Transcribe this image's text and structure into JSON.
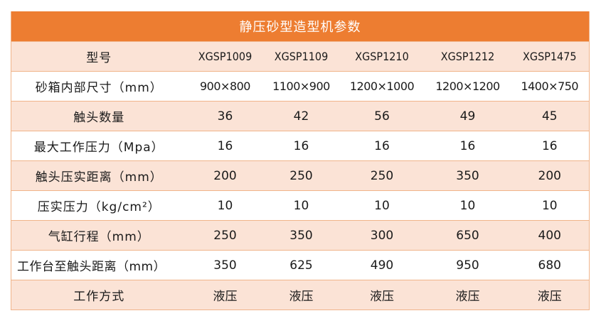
{
  "table": {
    "title": "静压砂型造型机参数",
    "colors": {
      "header_bg": "#ed7d31",
      "stripe_bg": "#fbe3d6",
      "border": "#f0b48a",
      "header_text": "#ffffff"
    },
    "rows": [
      {
        "label": "型号",
        "values": [
          "XGSP1009",
          "XGSP1109",
          "XGSP1210",
          "XGSP1212",
          "XGSP1475"
        ]
      },
      {
        "label": "砂箱内部尺寸（mm）",
        "values": [
          "900×800",
          "1100×900",
          "1200×1000",
          "1200×1200",
          "1400×750"
        ]
      },
      {
        "label": "触头数量",
        "values": [
          "36",
          "42",
          "56",
          "49",
          "45"
        ]
      },
      {
        "label": "最大工作压力（Mpa）",
        "values": [
          "16",
          "16",
          "16",
          "16",
          "16"
        ]
      },
      {
        "label": "触头压实距离（mm）",
        "values": [
          "200",
          "250",
          "250",
          "350",
          "200"
        ]
      },
      {
        "label": "压实压力（kg/cm²）",
        "values": [
          "10",
          "10",
          "10",
          "10",
          "10"
        ]
      },
      {
        "label": "气缸行程（mm）",
        "values": [
          "250",
          "350",
          "300",
          "650",
          "400"
        ]
      },
      {
        "label": "工作台至触头距离（mm）",
        "values": [
          "350",
          "625",
          "490",
          "950",
          "680"
        ]
      },
      {
        "label": "工作方式",
        "values": [
          "液压",
          "液压",
          "液压",
          "液压",
          "液压"
        ]
      }
    ]
  }
}
